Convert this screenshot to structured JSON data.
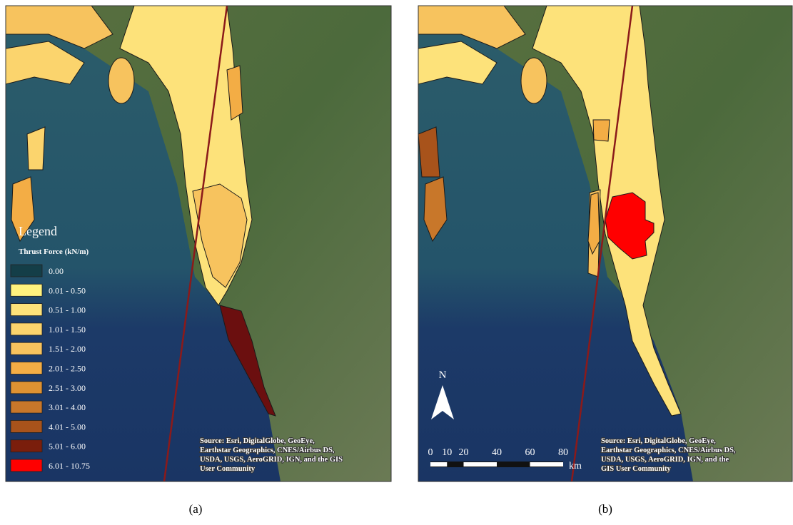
{
  "panels": [
    {
      "label": "(a)",
      "legend": {
        "heading": "Legend",
        "title": "Thrust Force (kN/m)",
        "items": [
          {
            "label": "0.00",
            "color": "#143e48"
          },
          {
            "label": "0.01 - 0.50",
            "color": "#fff27e"
          },
          {
            "label": "0.51 - 1.00",
            "color": "#fde27a"
          },
          {
            "label": "1.01 - 1.50",
            "color": "#fbd46d"
          },
          {
            "label": "1.51 - 2.00",
            "color": "#f7c35e"
          },
          {
            "label": "2.01 - 2.50",
            "color": "#f3ad45"
          },
          {
            "label": "2.51 - 3.00",
            "color": "#de9232"
          },
          {
            "label": "3.01 - 4.00",
            "color": "#c8772a"
          },
          {
            "label": "4.01 - 5.00",
            "color": "#a8531b"
          },
          {
            "label": "5.01 - 6.00",
            "color": "#7a1e0c"
          },
          {
            "label": "6.01 - 10.75",
            "color": "#ff0000"
          }
        ]
      },
      "source": [
        "Source: Esri, DigitalGlobe, GeoEye,",
        "Earthstar Geographics, CNES/Airbus DS,",
        "USDA, USGS, AeroGRID, IGN, and the GIS",
        "User Community"
      ]
    },
    {
      "label": "(b)",
      "north": "N",
      "scale": {
        "ticks": [
          0,
          10,
          20,
          40,
          60,
          80
        ],
        "unit": "km"
      },
      "source": [
        "Source: Esri, DigitalGlobe, GeoEye,",
        "Earthstar Geographics, CNES/Airbus DS,",
        "USDA, USGS, AeroGRID, IGN, and the",
        "GIS User Community"
      ]
    }
  ]
}
